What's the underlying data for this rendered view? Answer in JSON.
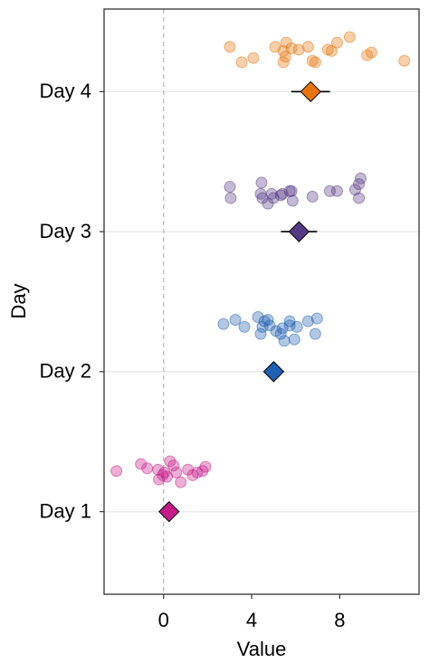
{
  "chart_data": {
    "type": "scatter",
    "xlabel": "Value",
    "ylabel": "Day",
    "xlim": [
      -2.7,
      11.6
    ],
    "ylim": [
      0.41,
      4.59
    ],
    "xticks": [
      0,
      4,
      8
    ],
    "yticks": [
      {
        "value": 1,
        "label": "Day 1"
      },
      {
        "value": 2,
        "label": "Day 2"
      },
      {
        "value": 3,
        "label": "Day 3"
      },
      {
        "value": 4,
        "label": "Day 4"
      }
    ],
    "grid": true,
    "vline": 0,
    "series": [
      {
        "color": "#c51b8a",
        "x": [
          -2.14,
          -1.03,
          -0.74,
          -0.25,
          -0.21,
          -0.04,
          0.16,
          0.29,
          0.45,
          0.78,
          1.11,
          1.53,
          1.77,
          1.9,
          1.32,
          0.04,
          0.58
        ],
        "y": [
          1.29,
          1.34,
          1.31,
          1.3,
          1.23,
          1.26,
          1.25,
          1.36,
          1.33,
          1.21,
          1.3,
          1.28,
          1.29,
          1.32,
          1.26,
          1.28,
          1.28
        ],
        "mean": 0.25,
        "error": 0.35
      },
      {
        "color": "#1f5fb0",
        "x": [
          2.72,
          3.26,
          3.67,
          4.29,
          4.41,
          4.49,
          4.74,
          4.82,
          5.11,
          5.32,
          5.48,
          5.73,
          5.94,
          6.06,
          6.56,
          6.97,
          6.89,
          5.73,
          4.58,
          5.4
        ],
        "y": [
          2.34,
          2.37,
          2.32,
          2.39,
          2.27,
          2.32,
          2.37,
          2.33,
          2.29,
          2.27,
          2.22,
          2.36,
          2.23,
          2.32,
          2.36,
          2.38,
          2.27,
          2.33,
          2.36,
          2.31
        ],
        "mean": 5.0,
        "error": 0.45
      },
      {
        "color": "#563a84",
        "x": [
          3.01,
          3.05,
          4.41,
          4.45,
          4.49,
          4.91,
          4.74,
          5.32,
          5.4,
          5.73,
          5.86,
          6.76,
          7.55,
          7.88,
          8.7,
          8.87,
          8.95,
          8.87,
          4.99,
          5.81
        ],
        "y": [
          3.32,
          3.24,
          3.27,
          3.35,
          3.24,
          3.27,
          3.2,
          3.26,
          3.27,
          3.29,
          3.22,
          3.25,
          3.29,
          3.29,
          3.3,
          3.24,
          3.38,
          3.34,
          3.24,
          3.29
        ],
        "mean": 6.15,
        "error": 0.82
      },
      {
        "color": "#e6750e",
        "x": [
          3.01,
          3.55,
          4.08,
          5.07,
          5.44,
          5.57,
          5.53,
          5.44,
          6.14,
          6.56,
          6.89,
          6.76,
          7.63,
          7.88,
          8.45,
          9.24,
          9.44,
          10.93,
          7.46,
          5.81
        ],
        "y": [
          4.32,
          4.21,
          4.24,
          4.32,
          4.29,
          4.35,
          4.25,
          4.21,
          4.3,
          4.32,
          4.21,
          4.22,
          4.29,
          4.35,
          4.39,
          4.26,
          4.28,
          4.22,
          4.3,
          4.31
        ],
        "mean": 6.68,
        "error": 0.88
      }
    ]
  }
}
